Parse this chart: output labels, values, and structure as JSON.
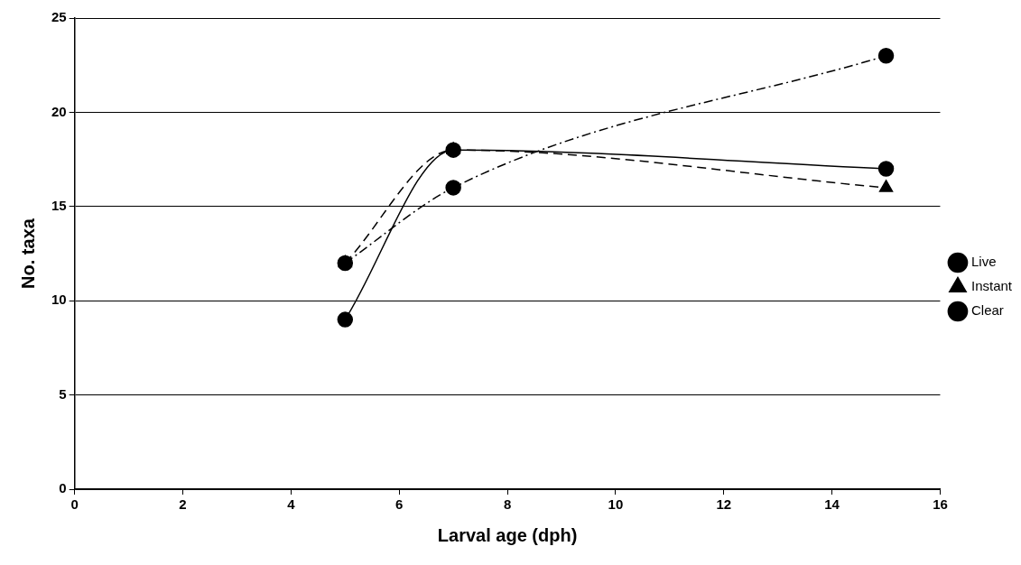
{
  "chart_data": {
    "type": "line",
    "xlabel": "Larval age (dph)",
    "ylabel": "No. taxa",
    "x": [
      5,
      7,
      15
    ],
    "series": [
      {
        "name": "Live",
        "color": "#000000",
        "values": [
          12,
          16,
          23
        ],
        "marker": "circle",
        "line_style": "dashdot"
      },
      {
        "name": "Instant",
        "color": "#000000",
        "values": [
          12,
          18,
          16
        ],
        "marker": "triangle",
        "line_style": "dashed"
      },
      {
        "name": "Clear",
        "color": "#000000",
        "values": [
          9,
          18,
          17
        ],
        "marker": "circle",
        "line_style": "solid"
      }
    ],
    "xlim": [
      0,
      16
    ],
    "xticks": [
      0,
      2,
      4,
      6,
      8,
      10,
      12,
      14,
      16
    ],
    "ylim": [
      0,
      25
    ],
    "yticks": [
      0,
      5,
      10,
      15,
      20,
      25
    ],
    "grid": "y",
    "legend": "right"
  }
}
